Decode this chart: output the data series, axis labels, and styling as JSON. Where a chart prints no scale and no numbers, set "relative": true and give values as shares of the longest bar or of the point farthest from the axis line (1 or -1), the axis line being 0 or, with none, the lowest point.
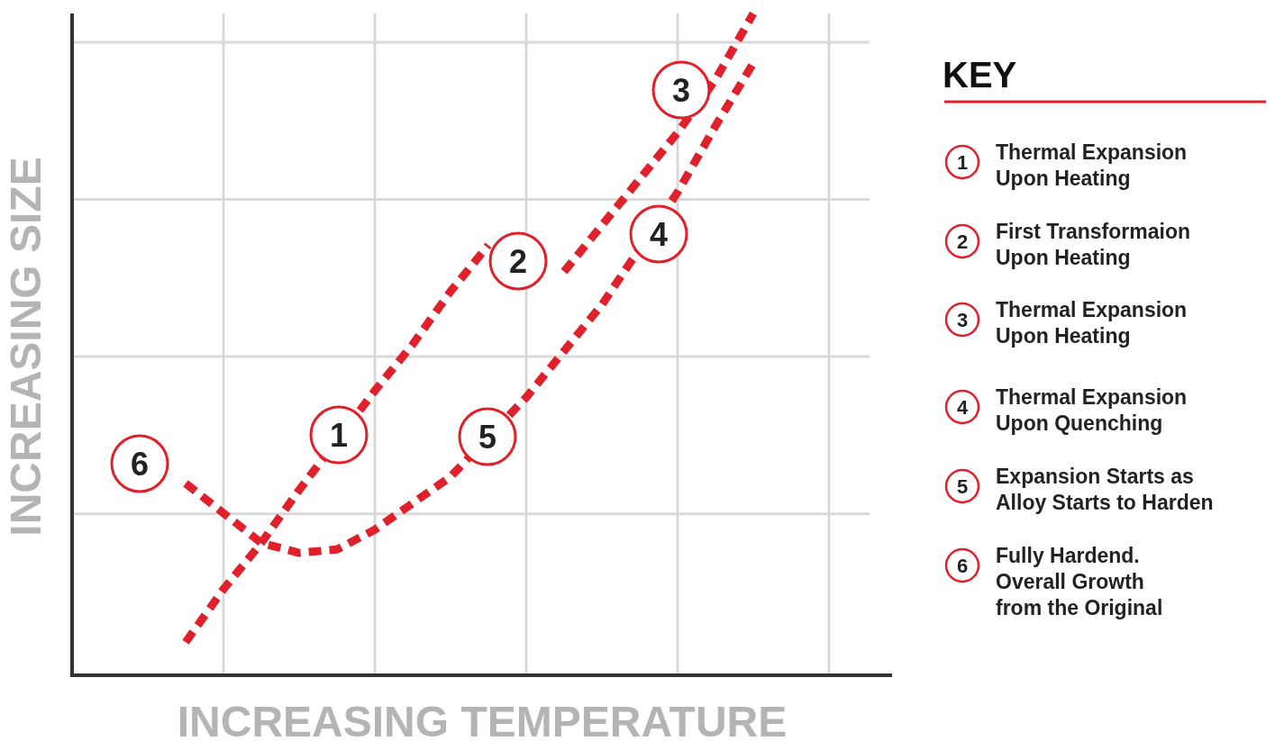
{
  "chart_data": {
    "type": "line",
    "relative": true,
    "xlabel": "INCREASING TEMPERATURE",
    "ylabel": "INCREASING SIZE",
    "legend_title": "KEY",
    "categories": [
      null,
      null,
      null,
      null,
      null,
      null,
      null,
      null,
      null,
      null,
      null,
      null,
      null,
      null,
      null,
      null,
      null,
      null,
      null,
      null,
      null,
      null
    ],
    "series": [
      {
        "color": "#e0202a",
        "values": [
          null,
          null,
          null,
          0.05,
          0.13,
          0.2,
          0.28,
          null,
          0.43,
          0.5,
          0.58,
          0.65,
          null,
          null,
          null,
          null,
          null,
          null,
          null,
          null,
          null,
          null
        ]
      },
      {
        "color": "#e0202a",
        "values": [
          null,
          null,
          null,
          null,
          null,
          null,
          null,
          null,
          null,
          null,
          null,
          null,
          null,
          0.61,
          0.68,
          0.75,
          0.82,
          0.9,
          1.0,
          null,
          null,
          null
        ]
      },
      {
        "color": "#e0202a",
        "values": [
          null,
          null,
          null,
          0.29,
          0.245,
          0.2,
          0.185,
          0.19,
          0.22,
          0.26,
          0.3,
          null,
          0.42,
          0.49,
          0.56,
          null,
          0.73,
          0.83,
          0.925,
          null,
          null,
          null
        ]
      }
    ],
    "annotations": [
      "1",
      "2",
      "3",
      "4",
      "5",
      "6",
      "Thermal Expansion\nUpon Heating",
      "First Transformaion\nUpon Heating",
      "Thermal Expansion\nUpon Heating",
      "Thermal Expansion\nUpon Quenching",
      "Expansion Starts as\nAlloy Starts to Harden",
      "Fully Hardend.\nOverall Growth\nfrom the Original"
    ],
    "grid": true,
    "line_style": "dashed",
    "marker": "none",
    "tick_labels": false
  }
}
